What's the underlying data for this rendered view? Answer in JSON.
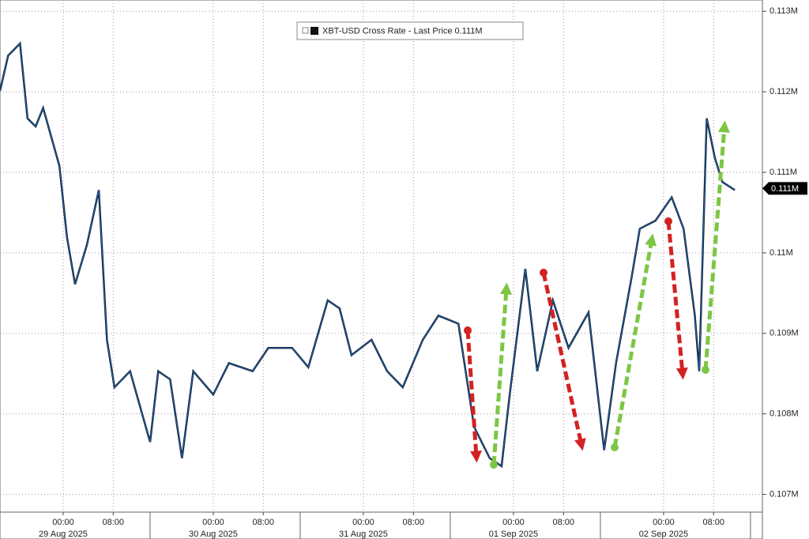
{
  "chart_data": {
    "type": "line",
    "series": [
      {
        "name": "XBT-USD Cross Rate - Last Price",
        "color": "#1f5fa8",
        "x": [
          -10.1,
          -8.8,
          -6.9,
          -5.7,
          -4.4,
          -3.2,
          -0.6,
          0.6,
          1.9,
          3.8,
          5.7,
          7.0,
          8.2,
          10.7,
          13.9,
          15.2,
          17.1,
          19.0,
          20.8,
          24.0,
          26.5,
          30.3,
          32.8,
          36.6,
          39.2,
          42.3,
          44.2,
          46.1,
          49.3,
          51.8,
          54.3,
          57.5,
          60.0,
          63.2,
          65.7,
          68.2,
          70.1,
          71.4,
          73.9,
          75.8,
          78.3,
          80.8,
          84.0,
          86.5,
          88.4,
          90.9,
          92.2,
          94.7,
          97.3,
          99.2,
          101.0,
          101.7,
          102.9,
          104.2,
          105.4,
          107.4
        ],
        "values": [
          0.11201,
          0.11245,
          0.1126,
          0.11167,
          0.11157,
          0.1118,
          0.11108,
          0.1102,
          0.10961,
          0.1101,
          0.11078,
          0.10892,
          0.10833,
          0.10853,
          0.10765,
          0.10853,
          0.10843,
          0.10745,
          0.10853,
          0.10824,
          0.10863,
          0.10853,
          0.10882,
          0.10882,
          0.10858,
          0.10941,
          0.10931,
          0.10873,
          0.10892,
          0.10853,
          0.10833,
          0.10892,
          0.10922,
          0.10912,
          0.10784,
          0.10745,
          0.10735,
          0.10824,
          0.1098,
          0.10853,
          0.10941,
          0.10882,
          0.10926,
          0.10755,
          0.10863,
          0.1097,
          0.1103,
          0.1104,
          0.11069,
          0.1103,
          0.10922,
          0.10853,
          0.11167,
          0.11118,
          0.11088,
          0.11078
        ]
      }
    ],
    "last_price": {
      "value": 0.1108,
      "label": "0.111M"
    },
    "xlim": [
      -10.1,
      111.8
    ],
    "xticks": [
      {
        "value": 0,
        "label": "00:00"
      },
      {
        "value": 8,
        "label": "08:00"
      },
      {
        "value": 24,
        "label": "00:00"
      },
      {
        "value": 32,
        "label": "08:00"
      },
      {
        "value": 48,
        "label": "00:00"
      },
      {
        "value": 56,
        "label": "08:00"
      },
      {
        "value": 72,
        "label": "00:00"
      },
      {
        "value": 80,
        "label": "08:00"
      },
      {
        "value": 96,
        "label": "00:00"
      },
      {
        "value": 104,
        "label": "08:00"
      }
    ],
    "date_ticks": [
      {
        "value": 0,
        "label": "29 Aug 2025"
      },
      {
        "value": 24,
        "label": "30 Aug 2025"
      },
      {
        "value": 48,
        "label": "31 Aug 2025"
      },
      {
        "value": 72,
        "label": "01 Sep 2025"
      },
      {
        "value": 96,
        "label": "02 Sep 2025"
      }
    ],
    "ylim": [
      0.10678,
      0.11314
    ],
    "yticks": [
      {
        "value": 0.107,
        "label": "0.107M"
      },
      {
        "value": 0.108,
        "label": "0.108M"
      },
      {
        "value": 0.109,
        "label": "0.109M"
      },
      {
        "value": 0.11,
        "label": "0.11M"
      },
      {
        "value": 0.111,
        "label": "0.111M"
      },
      {
        "value": 0.112,
        "label": "0.112M"
      },
      {
        "value": 0.113,
        "label": "0.113M"
      }
    ],
    "grid": true
  }
}
